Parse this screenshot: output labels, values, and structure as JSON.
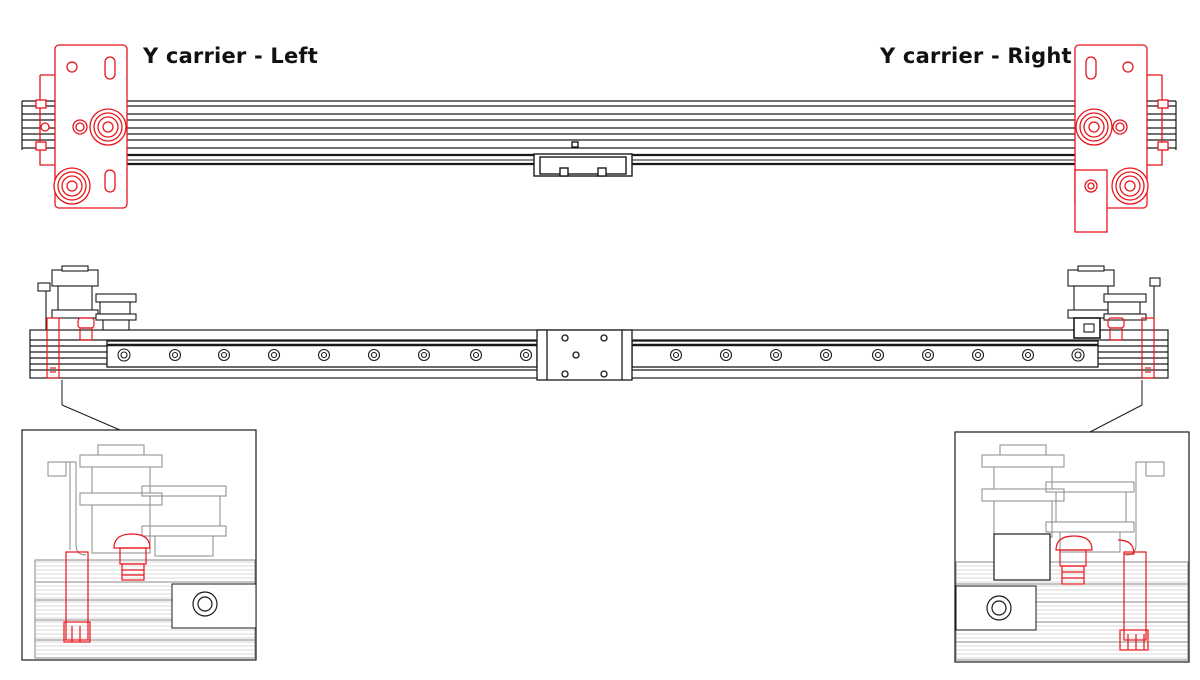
{
  "labels": {
    "left": "Y carrier - Left",
    "right": "Y carrier - Right"
  },
  "colors": {
    "line": "#1a1a1a",
    "highlight": "#e8141b",
    "background": "#ffffff",
    "detail_line": "#8a8a8a"
  }
}
